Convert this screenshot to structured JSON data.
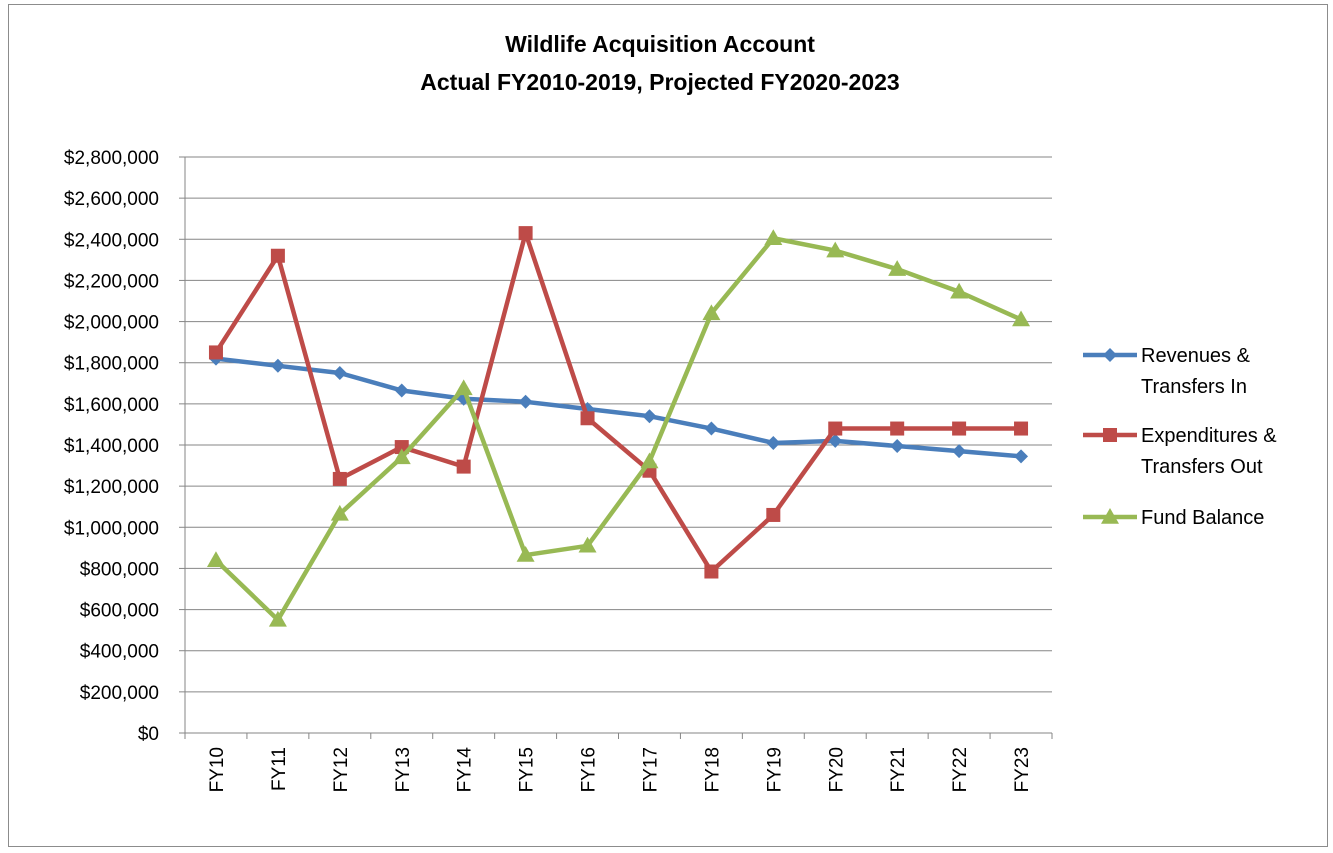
{
  "chart_data": {
    "type": "line",
    "title": [
      "Wildlife Acquisition Account",
      "Actual FY2010-2019,  Projected FY2020-2023"
    ],
    "xlabel": "",
    "ylabel": "",
    "categories": [
      "FY10",
      "FY11",
      "FY12",
      "FY13",
      "FY14",
      "FY15",
      "FY16",
      "FY17",
      "FY18",
      "FY19",
      "FY20",
      "FY21",
      "FY22",
      "FY23"
    ],
    "ylim": [
      0,
      2800000
    ],
    "ytick_step": 200000,
    "ytick_labels": [
      "$0",
      "$200,000",
      "$400,000",
      "$600,000",
      "$800,000",
      "$1,000,000",
      "$1,200,000",
      "$1,400,000",
      "$1,600,000",
      "$1,800,000",
      "$2,000,000",
      "$2,200,000",
      "$2,400,000",
      "$2,600,000",
      "$2,800,000"
    ],
    "grid": true,
    "legend_position": "right",
    "series": [
      {
        "name": "Revenues & Transfers In",
        "name_lines": [
          "Revenues &",
          "Transfers In"
        ],
        "color": "#4a7ebb",
        "marker": "diamond",
        "values": [
          1820000,
          1785000,
          1750000,
          1665000,
          1625000,
          1610000,
          1575000,
          1540000,
          1480000,
          1410000,
          1420000,
          1395000,
          1370000,
          1345000
        ]
      },
      {
        "name": "Expenditures & Transfers Out",
        "name_lines": [
          "Expenditures &",
          "Transfers Out"
        ],
        "color": "#be4b48",
        "marker": "square",
        "values": [
          1850000,
          2320000,
          1235000,
          1390000,
          1295000,
          2430000,
          1530000,
          1275000,
          785000,
          1060000,
          1480000,
          1480000,
          1480000,
          1480000
        ]
      },
      {
        "name": "Fund Balance",
        "name_lines": [
          "Fund Balance"
        ],
        "color": "#98b954",
        "marker": "triangle",
        "values": [
          840000,
          550000,
          1065000,
          1340000,
          1675000,
          865000,
          910000,
          1320000,
          2040000,
          2405000,
          2345000,
          2255000,
          2145000,
          2010000
        ]
      }
    ]
  }
}
